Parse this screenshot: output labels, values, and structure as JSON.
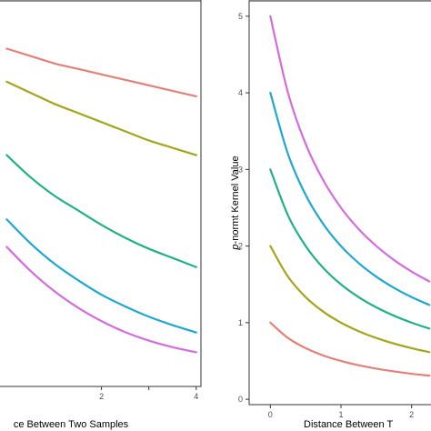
{
  "chart_data": [
    {
      "type": "line",
      "xlabel": "Distance Between Two Samples",
      "xlabel_visible": "ce Between Two Samples",
      "ylabel": "",
      "xlim": [
        -0.18,
        4.1
      ],
      "ylim": [
        -0.05,
        1.0
      ],
      "x_ticks": [
        2,
        3,
        4
      ],
      "x_tick_labels": [
        "2",
        "",
        "4"
      ],
      "grid": false,
      "series": [
        {
          "color": "#E0827A",
          "x": [
            0,
            0.5,
            1,
            1.5,
            2,
            2.5,
            3,
            3.5,
            4
          ],
          "y": [
            0.87,
            0.85,
            0.83,
            0.815,
            0.8,
            0.785,
            0.77,
            0.755,
            0.74
          ]
        },
        {
          "color": "#A3A51C",
          "x": [
            0,
            0.5,
            1,
            1.5,
            2,
            2.5,
            3,
            3.5,
            4
          ],
          "y": [
            0.78,
            0.75,
            0.72,
            0.695,
            0.67,
            0.645,
            0.62,
            0.6,
            0.58
          ]
        },
        {
          "color": "#21B087",
          "x": [
            0,
            0.5,
            1,
            1.5,
            2,
            2.5,
            3,
            3.5,
            4
          ],
          "y": [
            0.58,
            0.52,
            0.47,
            0.43,
            0.39,
            0.355,
            0.325,
            0.3,
            0.275
          ]
        },
        {
          "color": "#20A7CE",
          "x": [
            0,
            0.5,
            1,
            1.5,
            2,
            2.5,
            3,
            3.5,
            4
          ],
          "y": [
            0.405,
            0.34,
            0.285,
            0.24,
            0.2,
            0.168,
            0.14,
            0.117,
            0.097
          ]
        },
        {
          "color": "#D36DDB",
          "x": [
            0,
            0.5,
            1,
            1.5,
            2,
            2.5,
            3,
            3.5,
            4
          ],
          "y": [
            0.33,
            0.265,
            0.21,
            0.165,
            0.128,
            0.098,
            0.075,
            0.057,
            0.043
          ]
        }
      ]
    },
    {
      "type": "line",
      "xlabel": "Distance Between Two Samples",
      "xlabel_visible": "Distance Between T",
      "ylabel": "p-normt Kernel Value",
      "ylabel_italic_part": "p",
      "ylabel_rest": "-normt Kernel Value",
      "xlim": [
        -0.3,
        2.3
      ],
      "ylim": [
        -0.07,
        5.2
      ],
      "x_ticks": [
        0,
        1,
        2
      ],
      "x_tick_labels": [
        "0",
        "1",
        "2"
      ],
      "y_ticks": [
        0,
        1,
        2,
        3,
        4,
        5
      ],
      "y_tick_labels": [
        "0",
        "1",
        "2",
        "3",
        "4",
        "5"
      ],
      "grid": false,
      "series": [
        {
          "color": "#E0827A",
          "x": [
            0,
            0.25,
            0.5,
            0.75,
            1,
            1.25,
            1.5,
            1.75,
            2,
            2.25
          ],
          "y": [
            1.0,
            0.8,
            0.667,
            0.571,
            0.5,
            0.444,
            0.4,
            0.364,
            0.333,
            0.308
          ]
        },
        {
          "color": "#A3A51C",
          "x": [
            0,
            0.25,
            0.5,
            0.75,
            1,
            1.25,
            1.5,
            1.75,
            2,
            2.25
          ],
          "y": [
            2.0,
            1.6,
            1.333,
            1.143,
            1.0,
            0.889,
            0.8,
            0.727,
            0.667,
            0.615
          ]
        },
        {
          "color": "#21B087",
          "x": [
            0,
            0.25,
            0.5,
            0.75,
            1,
            1.25,
            1.5,
            1.75,
            2,
            2.25
          ],
          "y": [
            3.0,
            2.4,
            2.0,
            1.714,
            1.5,
            1.333,
            1.2,
            1.091,
            1.0,
            0.923
          ]
        },
        {
          "color": "#20A7CE",
          "x": [
            0,
            0.25,
            0.5,
            0.75,
            1,
            1.25,
            1.5,
            1.75,
            2,
            2.25
          ],
          "y": [
            4.0,
            3.2,
            2.667,
            2.286,
            2.0,
            1.778,
            1.6,
            1.455,
            1.333,
            1.231
          ]
        },
        {
          "color": "#D36DDB",
          "x": [
            0,
            0.25,
            0.5,
            0.75,
            1,
            1.25,
            1.5,
            1.75,
            2,
            2.25
          ],
          "y": [
            5.0,
            4.0,
            3.333,
            2.857,
            2.5,
            2.222,
            2.0,
            1.818,
            1.667,
            1.538
          ]
        }
      ]
    }
  ]
}
